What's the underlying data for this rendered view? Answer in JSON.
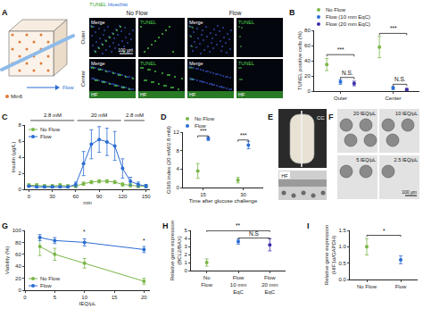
{
  "panels": {
    "A": {
      "letter": "A",
      "flow": "Flow",
      "cell": "Min6",
      "stains": [
        "TUNEL",
        "Hoechst"
      ],
      "groups": [
        "No Flow",
        "Flow"
      ],
      "images": [
        "Merge",
        "TUNEL",
        "Merge",
        "TUNEL"
      ],
      "rows": [
        "Outer",
        "Center"
      ],
      "scale": "100 µm",
      "fiber": "HF"
    },
    "E": {
      "letter": "E",
      "device": "CC",
      "fiber": "HF"
    },
    "F": {
      "letter": "F",
      "images": [
        "20 IEQ/µL",
        "10 IEQ/µL",
        "5 IEQ/µL",
        "2.5 IEQ/µL"
      ],
      "scale": "100 µm"
    }
  },
  "chart_data": [
    {
      "panel": "B",
      "type": "scatter",
      "marker": "circle",
      "grid": false,
      "legend": "top",
      "categories": [
        "Outer",
        "Center"
      ],
      "ylabel": "TUNEL positive cells (%)",
      "ylim": [
        0,
        80
      ],
      "yticks": [
        0,
        20,
        40,
        60,
        80
      ],
      "series": [
        {
          "name": "No Flow",
          "color": "#7ab648",
          "values": [
            35,
            58
          ],
          "error": [
            8,
            14
          ]
        },
        {
          "name": "Flow (10 mm EqC)",
          "color": "#2b6cd4",
          "values": [
            12,
            4
          ],
          "error": [
            3,
            2
          ]
        },
        {
          "name": "Flow (20 mm EqC)",
          "color": "#3d2fa8",
          "values": [
            10,
            2
          ],
          "error": [
            3,
            1.5
          ]
        }
      ],
      "annotations": [
        {
          "category": "Outer",
          "between": [
            "No Flow",
            "Flow (20 mm EqC)"
          ],
          "y": 48,
          "text": "***"
        },
        {
          "category": "Outer",
          "between": [
            "Flow (10 mm EqC)",
            "Flow (20 mm EqC)"
          ],
          "y": 18,
          "text": "N.S."
        },
        {
          "category": "Center",
          "between": [
            "No Flow",
            "Flow (20 mm EqC)"
          ],
          "y": 76,
          "text": "***"
        },
        {
          "category": "Center",
          "between": [
            "Flow (10 mm EqC)",
            "Flow (20 mm EqC)"
          ],
          "y": 9,
          "text": "N.S."
        }
      ]
    },
    {
      "panel": "C",
      "type": "line",
      "marker": "circle",
      "grid": false,
      "legend": "top left",
      "x": [
        0,
        10,
        20,
        30,
        40,
        50,
        60,
        70,
        80,
        90,
        100,
        110,
        120,
        130,
        140,
        150
      ],
      "xlabel": "min",
      "ylabel": "Insulin (µg/L)",
      "xlim": [
        -5,
        155
      ],
      "xticks": [
        0,
        30,
        60,
        90,
        120,
        150
      ],
      "ylim": [
        0,
        8
      ],
      "yticks": [
        0,
        2,
        4,
        6,
        8
      ],
      "phases": [
        {
          "start": 0,
          "end": 60,
          "text": "2.8 mM"
        },
        {
          "start": 60,
          "end": 120,
          "text": "20 mM"
        },
        {
          "start": 120,
          "end": 150,
          "text": "2.8 mM"
        }
      ],
      "series": [
        {
          "name": "No Flow",
          "color": "#7ab648",
          "values": [
            0.5,
            0.5,
            0.4,
            0.4,
            0.5,
            0.4,
            0.4,
            0.7,
            0.9,
            1.0,
            1.0,
            0.9,
            0.6,
            0.5,
            0.4,
            0.4
          ],
          "error": [
            0.2,
            0.2,
            0.2,
            0.2,
            0.2,
            0.2,
            0.2,
            0.2,
            0.2,
            0.2,
            0.2,
            0.2,
            0.2,
            0.2,
            0.2,
            0.2
          ]
        },
        {
          "name": "Flow",
          "color": "#2b6cd4",
          "values": [
            0.4,
            0.3,
            0.3,
            0.3,
            0.3,
            0.3,
            0.6,
            3.2,
            5.6,
            6.2,
            5.9,
            5.4,
            2.6,
            1.0,
            0.6,
            0.4
          ],
          "error": [
            0.1,
            0.1,
            0.1,
            0.1,
            0.1,
            0.1,
            0.3,
            1.5,
            1.8,
            1.6,
            1.7,
            1.8,
            1.2,
            0.5,
            0.3,
            0.2
          ]
        }
      ]
    },
    {
      "panel": "D",
      "type": "scatter",
      "marker": "circle",
      "grid": false,
      "legend": "top",
      "categories": [
        "15",
        "30"
      ],
      "xlabel": "Time after glucose challenge",
      "ylabel": "GSIS index (20 mM/2.8 mM)",
      "ylim": [
        0,
        12
      ],
      "yticks": [
        0,
        4,
        8,
        12
      ],
      "series": [
        {
          "name": "No Flow",
          "color": "#7ab648",
          "values": [
            3.6,
            1.6
          ],
          "error": [
            1.6,
            0.6
          ]
        },
        {
          "name": "Flow",
          "color": "#2b6cd4",
          "values": [
            10.6,
            9.2
          ],
          "error": [
            0.4,
            0.8
          ]
        }
      ],
      "annotations": [
        {
          "category": "15",
          "between": [
            "No Flow",
            "Flow"
          ],
          "y": 11.2,
          "text": "***"
        },
        {
          "category": "30",
          "between": [
            "No Flow",
            "Flow"
          ],
          "y": 10.3,
          "text": "***"
        }
      ]
    },
    {
      "panel": "G",
      "type": "line",
      "marker": "circle",
      "grid": false,
      "legend": "bottom left",
      "x": [
        2.5,
        5,
        10,
        20
      ],
      "xlabel": "IEQ/µL",
      "ylabel": "Viability (%)",
      "xlim": [
        0,
        21
      ],
      "xticks": [
        0,
        5,
        10,
        15,
        20
      ],
      "ylim": [
        0,
        100
      ],
      "yticks": [
        0,
        20,
        40,
        60,
        80,
        100
      ],
      "series": [
        {
          "name": "No Flow",
          "color": "#7ab648",
          "values": [
            73,
            60,
            45,
            15
          ],
          "error": [
            15,
            10,
            8,
            5
          ]
        },
        {
          "name": "Flow",
          "color": "#2b6cd4",
          "values": [
            88,
            83,
            80,
            68
          ],
          "error": [
            5,
            5,
            6,
            5
          ]
        }
      ],
      "annotations": [
        {
          "x": 10,
          "y": 90,
          "text": "*"
        },
        {
          "x": 20,
          "y": 75,
          "text": "*"
        }
      ]
    },
    {
      "panel": "H",
      "type": "scatter",
      "marker": "circle",
      "grid": false,
      "categories": [
        "No Flow",
        "Flow 10 mm EqC",
        "Flow 20 mm EqC"
      ],
      "ylabel": "Relative gene expression (BCL2/BAX)",
      "ylim": [
        0,
        5
      ],
      "yticks": [
        0,
        1,
        2,
        3,
        4,
        5
      ],
      "values": [
        1.0,
        3.6,
        3.2
      ],
      "error": [
        0.45,
        0.3,
        0.75
      ],
      "colors": [
        "#7ab648",
        "#2b6cd4",
        "#3d2fa8"
      ],
      "annotations": [
        {
          "between": [
            "No Flow",
            "Flow 20 mm EqC"
          ],
          "y": 4.95,
          "text": "**"
        },
        {
          "between": [
            "Flow 10 mm EqC",
            "Flow 20 mm EqC"
          ],
          "y": 4.05,
          "text": "N.S"
        }
      ]
    },
    {
      "panel": "I",
      "type": "scatter",
      "marker": "circle",
      "grid": false,
      "categories": [
        "No Flow",
        "Flow"
      ],
      "ylabel": "Relative gene expression (HIF1α/GAPDH)",
      "ylim": [
        0,
        1.5
      ],
      "yticks": [
        {
          "value": 0,
          "label": "0.0"
        },
        0.5,
        {
          "value": 1,
          "label": "1.0"
        },
        1.5
      ],
      "values": [
        1.0,
        0.6
      ],
      "error": [
        0.25,
        0.12
      ],
      "colors": [
        "#7ab648",
        "#2b6cd4"
      ],
      "annotations": [
        {
          "between": [
            "No Flow",
            "Flow"
          ],
          "y": 1.35,
          "text": "*"
        }
      ]
    }
  ]
}
